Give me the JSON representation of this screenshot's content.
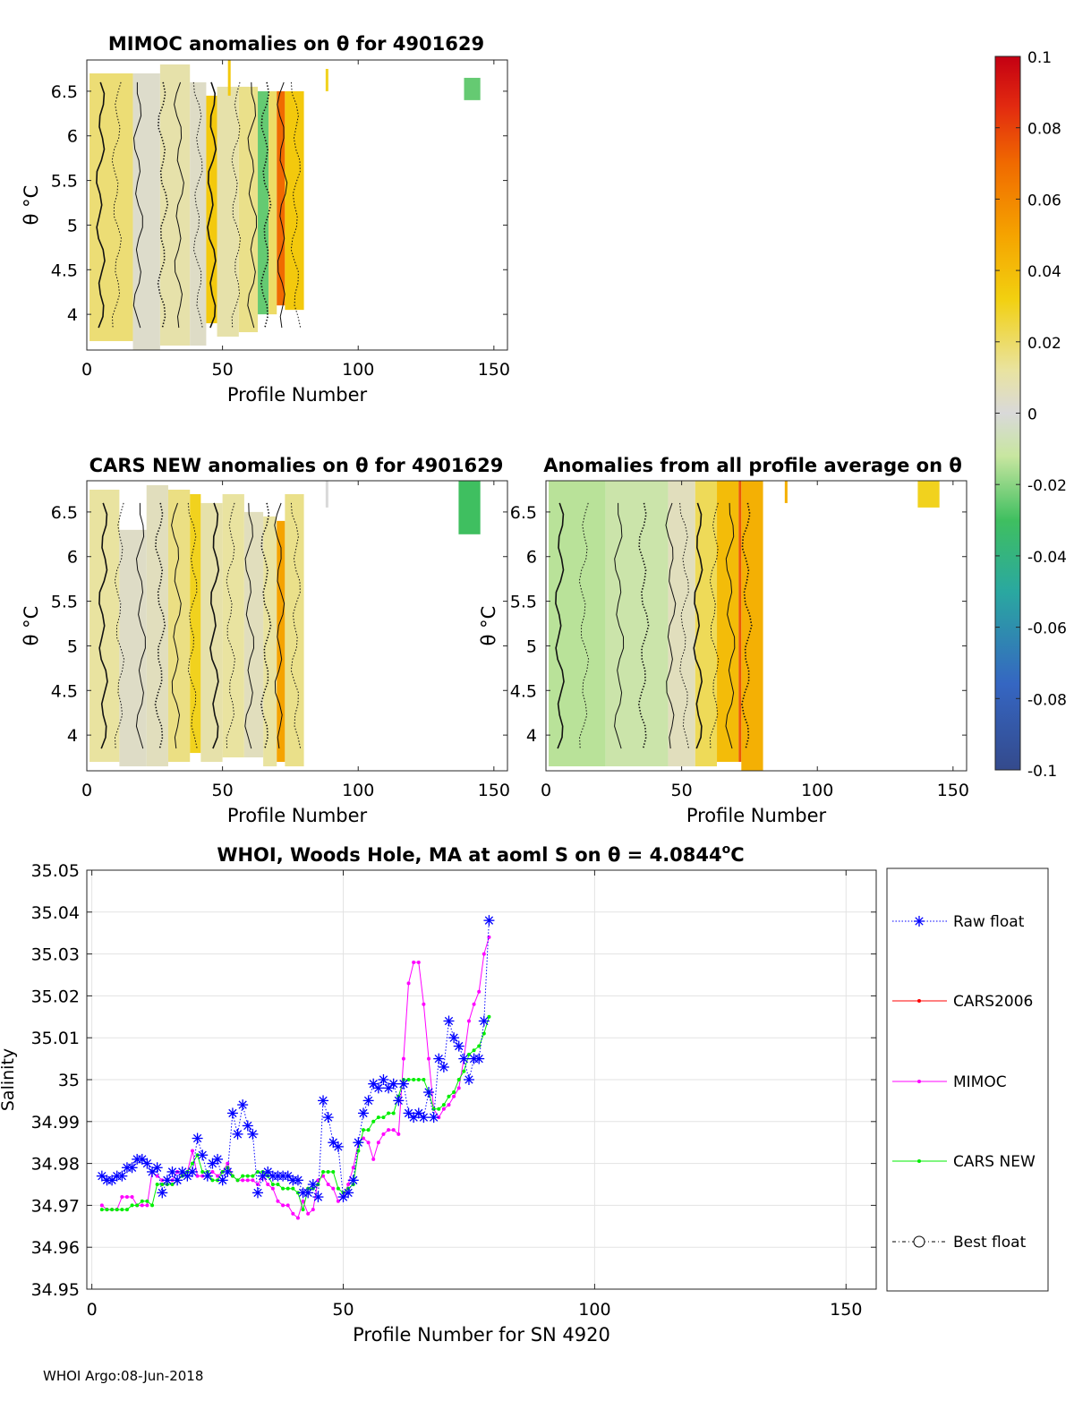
{
  "footer": "WHOI Argo:08-Jun-2018",
  "chart_data": [
    {
      "type": "heatmap",
      "id": "mimoc",
      "title": "MIMOC anomalies on θ  for 4901629",
      "xlabel": "Profile Number",
      "ylabel": "θ °C",
      "xlim": [
        0,
        155
      ],
      "ylim": [
        3.6,
        6.85
      ],
      "xticks": [
        "0",
        "50",
        "100",
        "150"
      ],
      "yticks": [
        "4",
        "4.5",
        "5",
        "5.5",
        "6",
        "6.5"
      ],
      "color_range": [
        -0.1,
        0.1
      ],
      "color_columns": [
        {
          "x0": 1,
          "x1": 17,
          "y0": 3.7,
          "y1": 6.7,
          "value": 0.018
        },
        {
          "x0": 17,
          "x1": 27,
          "y0": 3.6,
          "y1": 6.7,
          "value": 0.003
        },
        {
          "x0": 27,
          "x1": 38,
          "y0": 3.65,
          "y1": 6.8,
          "value": 0.01
        },
        {
          "x0": 38,
          "x1": 44,
          "y0": 3.65,
          "y1": 6.6,
          "value": 0.004
        },
        {
          "x0": 44,
          "x1": 48,
          "y0": 3.9,
          "y1": 6.45,
          "value": 0.035
        },
        {
          "x0": 48,
          "x1": 56,
          "y0": 3.75,
          "y1": 6.55,
          "value": 0.01
        },
        {
          "x0": 56,
          "x1": 63,
          "y0": 3.8,
          "y1": 6.55,
          "value": 0.015
        },
        {
          "x0": 63,
          "x1": 67,
          "y0": 4.0,
          "y1": 6.5,
          "value": -0.025
        },
        {
          "x0": 67,
          "x1": 70,
          "y0": 4.0,
          "y1": 6.5,
          "value": 0.02
        },
        {
          "x0": 70,
          "x1": 73,
          "y0": 4.1,
          "y1": 6.5,
          "value": 0.07
        },
        {
          "x0": 73,
          "x1": 80,
          "y0": 4.05,
          "y1": 6.5,
          "value": 0.035
        },
        {
          "x0": 52,
          "x1": 53,
          "y0": 6.45,
          "y1": 6.85,
          "value": 0.035
        },
        {
          "x0": 88,
          "x1": 89,
          "y0": 6.5,
          "y1": 6.75,
          "value": 0.03
        },
        {
          "x0": 139,
          "x1": 145,
          "y0": 6.4,
          "y1": 6.65,
          "value": -0.025
        }
      ],
      "contour_x": [
        5,
        11,
        19,
        28,
        34,
        41,
        46,
        55,
        61,
        66,
        72,
        77
      ]
    },
    {
      "type": "heatmap",
      "id": "cars",
      "title": "CARS NEW anomalies on θ for 4901629",
      "xlabel": "Profile Number",
      "ylabel": "θ °C",
      "xlim": [
        0,
        155
      ],
      "ylim": [
        3.6,
        6.85
      ],
      "xticks": [
        "0",
        "50",
        "100",
        "150"
      ],
      "yticks": [
        "4",
        "4.5",
        "5",
        "5.5",
        "6",
        "6.5"
      ],
      "color_range": [
        -0.1,
        0.1
      ],
      "color_columns": [
        {
          "x0": 1,
          "x1": 12,
          "y0": 3.7,
          "y1": 6.75,
          "value": 0.012
        },
        {
          "x0": 12,
          "x1": 22,
          "y0": 3.65,
          "y1": 6.3,
          "value": 0.004
        },
        {
          "x0": 22,
          "x1": 30,
          "y0": 3.65,
          "y1": 6.8,
          "value": 0.006
        },
        {
          "x0": 30,
          "x1": 38,
          "y0": 3.7,
          "y1": 6.75,
          "value": 0.016
        },
        {
          "x0": 38,
          "x1": 42,
          "y0": 3.8,
          "y1": 6.7,
          "value": 0.03
        },
        {
          "x0": 42,
          "x1": 50,
          "y0": 3.7,
          "y1": 6.6,
          "value": 0.01
        },
        {
          "x0": 50,
          "x1": 58,
          "y0": 3.75,
          "y1": 6.7,
          "value": 0.012
        },
        {
          "x0": 58,
          "x1": 65,
          "y0": 3.75,
          "y1": 6.5,
          "value": 0.006
        },
        {
          "x0": 65,
          "x1": 70,
          "y0": 3.65,
          "y1": 6.45,
          "value": 0.012
        },
        {
          "x0": 70,
          "x1": 73,
          "y0": 3.7,
          "y1": 6.4,
          "value": 0.05
        },
        {
          "x0": 73,
          "x1": 80,
          "y0": 3.65,
          "y1": 6.7,
          "value": 0.015
        },
        {
          "x0": 88,
          "x1": 89,
          "y0": 6.55,
          "y1": 6.85,
          "value": 0.0
        },
        {
          "x0": 137,
          "x1": 145,
          "y0": 6.25,
          "y1": 6.85,
          "value": -0.03
        }
      ],
      "contour_x": [
        6,
        12,
        20,
        27,
        33,
        39,
        47,
        53,
        60,
        66,
        71,
        77
      ]
    },
    {
      "type": "heatmap",
      "id": "avg",
      "title": "Anomalies from all profile average on θ",
      "xlabel": "Profile Number",
      "ylabel": "θ °C",
      "xlim": [
        0,
        155
      ],
      "ylim": [
        3.6,
        6.85
      ],
      "xticks": [
        "0",
        "50",
        "100",
        "150"
      ],
      "yticks": [
        "4",
        "4.5",
        "5",
        "5.5",
        "6",
        "6.5"
      ],
      "color_range": [
        -0.1,
        0.1
      ],
      "color_columns": [
        {
          "x0": 1,
          "x1": 22,
          "y0": 3.65,
          "y1": 6.85,
          "value": -0.014
        },
        {
          "x0": 22,
          "x1": 45,
          "y0": 3.65,
          "y1": 6.85,
          "value": -0.01
        },
        {
          "x0": 45,
          "x1": 55,
          "y0": 3.65,
          "y1": 6.85,
          "value": 0.006
        },
        {
          "x0": 55,
          "x1": 63,
          "y0": 3.65,
          "y1": 6.85,
          "value": 0.022
        },
        {
          "x0": 63,
          "x1": 71,
          "y0": 3.7,
          "y1": 6.85,
          "value": 0.04
        },
        {
          "x0": 71,
          "x1": 72,
          "y0": 3.7,
          "y1": 6.85,
          "value": 0.075
        },
        {
          "x0": 72,
          "x1": 80,
          "y0": 3.6,
          "y1": 6.85,
          "value": 0.045
        },
        {
          "x0": 88,
          "x1": 89,
          "y0": 6.6,
          "y1": 6.85,
          "value": 0.045
        },
        {
          "x0": 137,
          "x1": 145,
          "y0": 6.55,
          "y1": 6.85,
          "value": 0.03
        }
      ],
      "contour_x": [
        5,
        14,
        27,
        36,
        46,
        51,
        56,
        62,
        68,
        74
      ]
    },
    {
      "type": "colorbar",
      "id": "colorbar",
      "range": [
        -0.1,
        0.1
      ],
      "tick_labels": [
        "0.1",
        "0.08",
        "0.06",
        "0.04",
        "0.02",
        "0",
        "-0.02",
        "-0.04",
        "-0.06",
        "-0.08",
        "-0.1"
      ]
    },
    {
      "type": "line",
      "id": "salinity",
      "title_text": "WHOI, Woods Hole, MA at aoml S on θ = 4.0844",
      "title_superscript": "o",
      "title_unit": "C",
      "xlabel": "Profile Number for SN 4920",
      "ylabel": "Salinity",
      "xlim": [
        -1,
        156
      ],
      "ylim": [
        34.95,
        35.05
      ],
      "xticks": [
        "0",
        "50",
        "100",
        "150"
      ],
      "yticks": [
        "34.95",
        "34.96",
        "34.97",
        "34.98",
        "34.99",
        "35",
        "35.01",
        "35.02",
        "35.03",
        "35.04",
        "35.05"
      ],
      "grid": true,
      "legend_position": "outside-right",
      "legend": [
        "Raw float",
        "CARS2006",
        "MIMOC",
        "CARS NEW",
        "Best float"
      ],
      "colors": {
        "raw": "#0000ff",
        "cars2006": "#ff0000",
        "mimoc": "#ff00ff",
        "carsnew": "#00ee00",
        "best": "#000000"
      },
      "x": [
        2,
        3,
        4,
        5,
        6,
        7,
        8,
        9,
        10,
        11,
        12,
        13,
        14,
        15,
        16,
        17,
        18,
        19,
        20,
        21,
        22,
        23,
        24,
        25,
        26,
        27,
        28,
        29,
        30,
        31,
        32,
        33,
        34,
        35,
        36,
        37,
        38,
        39,
        40,
        41,
        42,
        43,
        44,
        45,
        46,
        47,
        48,
        49,
        50,
        51,
        52,
        53,
        54,
        55,
        56,
        57,
        58,
        59,
        60,
        61,
        62,
        63,
        64,
        65,
        66,
        67,
        68,
        69,
        70,
        71,
        72,
        73,
        74,
        75,
        76,
        77,
        78,
        79
      ],
      "series": [
        {
          "name": "Raw float",
          "values": [
            34.977,
            34.976,
            34.976,
            34.977,
            34.977,
            34.979,
            34.979,
            34.981,
            34.981,
            34.98,
            34.978,
            34.979,
            34.973,
            34.976,
            34.978,
            34.976,
            34.978,
            34.977,
            34.978,
            34.986,
            34.982,
            34.977,
            34.98,
            34.981,
            34.976,
            34.978,
            34.992,
            34.987,
            34.994,
            34.989,
            34.987,
            34.973,
            34.977,
            34.978,
            34.977,
            34.977,
            34.977,
            34.977,
            34.976,
            34.976,
            34.973,
            34.973,
            34.975,
            34.972,
            34.995,
            34.991,
            34.985,
            34.984,
            34.972,
            34.973,
            34.976,
            34.985,
            34.992,
            34.995,
            34.999,
            34.998,
            35.0,
            34.998,
            34.999,
            34.995,
            34.999,
            34.992,
            34.991,
            34.992,
            34.991,
            34.997,
            34.991,
            35.005,
            35.003,
            35.014,
            35.01,
            35.008,
            35.005,
            35.0,
            35.005,
            35.005,
            35.014,
            35.038
          ]
        },
        {
          "name": "MIMOC",
          "values": [
            34.97,
            34.969,
            34.969,
            34.969,
            34.972,
            34.972,
            34.972,
            34.97,
            34.97,
            34.97,
            34.978,
            34.977,
            34.976,
            34.976,
            34.976,
            34.978,
            34.977,
            34.978,
            34.983,
            34.977,
            34.977,
            34.977,
            34.978,
            34.977,
            34.978,
            34.98,
            34.977,
            34.976,
            34.976,
            34.976,
            34.976,
            34.975,
            34.977,
            34.975,
            34.974,
            34.971,
            34.97,
            34.97,
            34.968,
            34.967,
            34.971,
            34.968,
            34.969,
            34.976,
            34.977,
            34.975,
            34.974,
            34.971,
            34.972,
            34.975,
            34.979,
            34.985,
            34.986,
            34.985,
            34.981,
            34.985,
            34.987,
            34.988,
            34.988,
            34.987,
            35.005,
            35.023,
            35.028,
            35.028,
            35.018,
            35.005,
            34.993,
            34.991,
            34.993,
            34.994,
            34.996,
            34.998,
            35.005,
            35.014,
            35.018,
            35.021,
            35.03,
            35.034
          ]
        },
        {
          "name": "CARS NEW",
          "values": [
            34.969,
            34.969,
            34.969,
            34.969,
            34.969,
            34.969,
            34.97,
            34.97,
            34.971,
            34.971,
            34.97,
            34.975,
            34.975,
            34.975,
            34.975,
            34.976,
            34.977,
            34.978,
            34.98,
            34.982,
            34.978,
            34.978,
            34.976,
            34.976,
            34.978,
            34.979,
            34.977,
            34.976,
            34.977,
            34.977,
            34.977,
            34.978,
            34.978,
            34.977,
            34.975,
            34.975,
            34.974,
            34.974,
            34.974,
            34.973,
            34.969,
            34.974,
            34.974,
            34.975,
            34.978,
            34.978,
            34.978,
            34.974,
            34.973,
            34.974,
            34.975,
            34.983,
            34.988,
            34.988,
            34.99,
            34.991,
            34.991,
            34.992,
            34.992,
            34.996,
            35.0,
            35.0,
            35.0,
            35.0,
            35.0,
            34.997,
            34.993,
            34.993,
            34.994,
            34.996,
            34.997,
            35.0,
            35.002,
            35.006,
            35.007,
            35.008,
            35.011,
            35.015
          ]
        }
      ]
    }
  ]
}
